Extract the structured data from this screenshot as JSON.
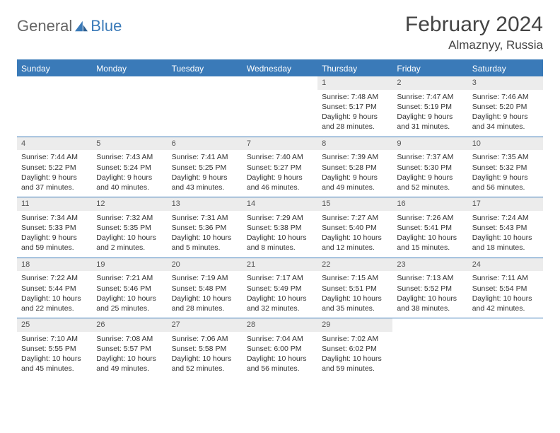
{
  "brand": {
    "general": "General",
    "blue": "Blue"
  },
  "title": "February 2024",
  "location": "Almaznyy, Russia",
  "colors": {
    "header_bg": "#3a7ab8",
    "header_text": "#ffffff",
    "daynum_bg": "#ececec",
    "body_text": "#333333",
    "rule": "#3a7ab8"
  },
  "typography": {
    "title_fontsize": 30,
    "location_fontsize": 17,
    "dow_fontsize": 12,
    "cell_fontsize": 10.5
  },
  "days_of_week": [
    "Sunday",
    "Monday",
    "Tuesday",
    "Wednesday",
    "Thursday",
    "Friday",
    "Saturday"
  ],
  "weeks": [
    [
      {
        "n": null
      },
      {
        "n": null
      },
      {
        "n": null
      },
      {
        "n": null
      },
      {
        "n": "1",
        "sunrise": "Sunrise: 7:48 AM",
        "sunset": "Sunset: 5:17 PM",
        "daylight1": "Daylight: 9 hours",
        "daylight2": "and 28 minutes."
      },
      {
        "n": "2",
        "sunrise": "Sunrise: 7:47 AM",
        "sunset": "Sunset: 5:19 PM",
        "daylight1": "Daylight: 9 hours",
        "daylight2": "and 31 minutes."
      },
      {
        "n": "3",
        "sunrise": "Sunrise: 7:46 AM",
        "sunset": "Sunset: 5:20 PM",
        "daylight1": "Daylight: 9 hours",
        "daylight2": "and 34 minutes."
      }
    ],
    [
      {
        "n": "4",
        "sunrise": "Sunrise: 7:44 AM",
        "sunset": "Sunset: 5:22 PM",
        "daylight1": "Daylight: 9 hours",
        "daylight2": "and 37 minutes."
      },
      {
        "n": "5",
        "sunrise": "Sunrise: 7:43 AM",
        "sunset": "Sunset: 5:24 PM",
        "daylight1": "Daylight: 9 hours",
        "daylight2": "and 40 minutes."
      },
      {
        "n": "6",
        "sunrise": "Sunrise: 7:41 AM",
        "sunset": "Sunset: 5:25 PM",
        "daylight1": "Daylight: 9 hours",
        "daylight2": "and 43 minutes."
      },
      {
        "n": "7",
        "sunrise": "Sunrise: 7:40 AM",
        "sunset": "Sunset: 5:27 PM",
        "daylight1": "Daylight: 9 hours",
        "daylight2": "and 46 minutes."
      },
      {
        "n": "8",
        "sunrise": "Sunrise: 7:39 AM",
        "sunset": "Sunset: 5:28 PM",
        "daylight1": "Daylight: 9 hours",
        "daylight2": "and 49 minutes."
      },
      {
        "n": "9",
        "sunrise": "Sunrise: 7:37 AM",
        "sunset": "Sunset: 5:30 PM",
        "daylight1": "Daylight: 9 hours",
        "daylight2": "and 52 minutes."
      },
      {
        "n": "10",
        "sunrise": "Sunrise: 7:35 AM",
        "sunset": "Sunset: 5:32 PM",
        "daylight1": "Daylight: 9 hours",
        "daylight2": "and 56 minutes."
      }
    ],
    [
      {
        "n": "11",
        "sunrise": "Sunrise: 7:34 AM",
        "sunset": "Sunset: 5:33 PM",
        "daylight1": "Daylight: 9 hours",
        "daylight2": "and 59 minutes."
      },
      {
        "n": "12",
        "sunrise": "Sunrise: 7:32 AM",
        "sunset": "Sunset: 5:35 PM",
        "daylight1": "Daylight: 10 hours",
        "daylight2": "and 2 minutes."
      },
      {
        "n": "13",
        "sunrise": "Sunrise: 7:31 AM",
        "sunset": "Sunset: 5:36 PM",
        "daylight1": "Daylight: 10 hours",
        "daylight2": "and 5 minutes."
      },
      {
        "n": "14",
        "sunrise": "Sunrise: 7:29 AM",
        "sunset": "Sunset: 5:38 PM",
        "daylight1": "Daylight: 10 hours",
        "daylight2": "and 8 minutes."
      },
      {
        "n": "15",
        "sunrise": "Sunrise: 7:27 AM",
        "sunset": "Sunset: 5:40 PM",
        "daylight1": "Daylight: 10 hours",
        "daylight2": "and 12 minutes."
      },
      {
        "n": "16",
        "sunrise": "Sunrise: 7:26 AM",
        "sunset": "Sunset: 5:41 PM",
        "daylight1": "Daylight: 10 hours",
        "daylight2": "and 15 minutes."
      },
      {
        "n": "17",
        "sunrise": "Sunrise: 7:24 AM",
        "sunset": "Sunset: 5:43 PM",
        "daylight1": "Daylight: 10 hours",
        "daylight2": "and 18 minutes."
      }
    ],
    [
      {
        "n": "18",
        "sunrise": "Sunrise: 7:22 AM",
        "sunset": "Sunset: 5:44 PM",
        "daylight1": "Daylight: 10 hours",
        "daylight2": "and 22 minutes."
      },
      {
        "n": "19",
        "sunrise": "Sunrise: 7:21 AM",
        "sunset": "Sunset: 5:46 PM",
        "daylight1": "Daylight: 10 hours",
        "daylight2": "and 25 minutes."
      },
      {
        "n": "20",
        "sunrise": "Sunrise: 7:19 AM",
        "sunset": "Sunset: 5:48 PM",
        "daylight1": "Daylight: 10 hours",
        "daylight2": "and 28 minutes."
      },
      {
        "n": "21",
        "sunrise": "Sunrise: 7:17 AM",
        "sunset": "Sunset: 5:49 PM",
        "daylight1": "Daylight: 10 hours",
        "daylight2": "and 32 minutes."
      },
      {
        "n": "22",
        "sunrise": "Sunrise: 7:15 AM",
        "sunset": "Sunset: 5:51 PM",
        "daylight1": "Daylight: 10 hours",
        "daylight2": "and 35 minutes."
      },
      {
        "n": "23",
        "sunrise": "Sunrise: 7:13 AM",
        "sunset": "Sunset: 5:52 PM",
        "daylight1": "Daylight: 10 hours",
        "daylight2": "and 38 minutes."
      },
      {
        "n": "24",
        "sunrise": "Sunrise: 7:11 AM",
        "sunset": "Sunset: 5:54 PM",
        "daylight1": "Daylight: 10 hours",
        "daylight2": "and 42 minutes."
      }
    ],
    [
      {
        "n": "25",
        "sunrise": "Sunrise: 7:10 AM",
        "sunset": "Sunset: 5:55 PM",
        "daylight1": "Daylight: 10 hours",
        "daylight2": "and 45 minutes."
      },
      {
        "n": "26",
        "sunrise": "Sunrise: 7:08 AM",
        "sunset": "Sunset: 5:57 PM",
        "daylight1": "Daylight: 10 hours",
        "daylight2": "and 49 minutes."
      },
      {
        "n": "27",
        "sunrise": "Sunrise: 7:06 AM",
        "sunset": "Sunset: 5:58 PM",
        "daylight1": "Daylight: 10 hours",
        "daylight2": "and 52 minutes."
      },
      {
        "n": "28",
        "sunrise": "Sunrise: 7:04 AM",
        "sunset": "Sunset: 6:00 PM",
        "daylight1": "Daylight: 10 hours",
        "daylight2": "and 56 minutes."
      },
      {
        "n": "29",
        "sunrise": "Sunrise: 7:02 AM",
        "sunset": "Sunset: 6:02 PM",
        "daylight1": "Daylight: 10 hours",
        "daylight2": "and 59 minutes."
      },
      {
        "n": null
      },
      {
        "n": null
      }
    ]
  ]
}
